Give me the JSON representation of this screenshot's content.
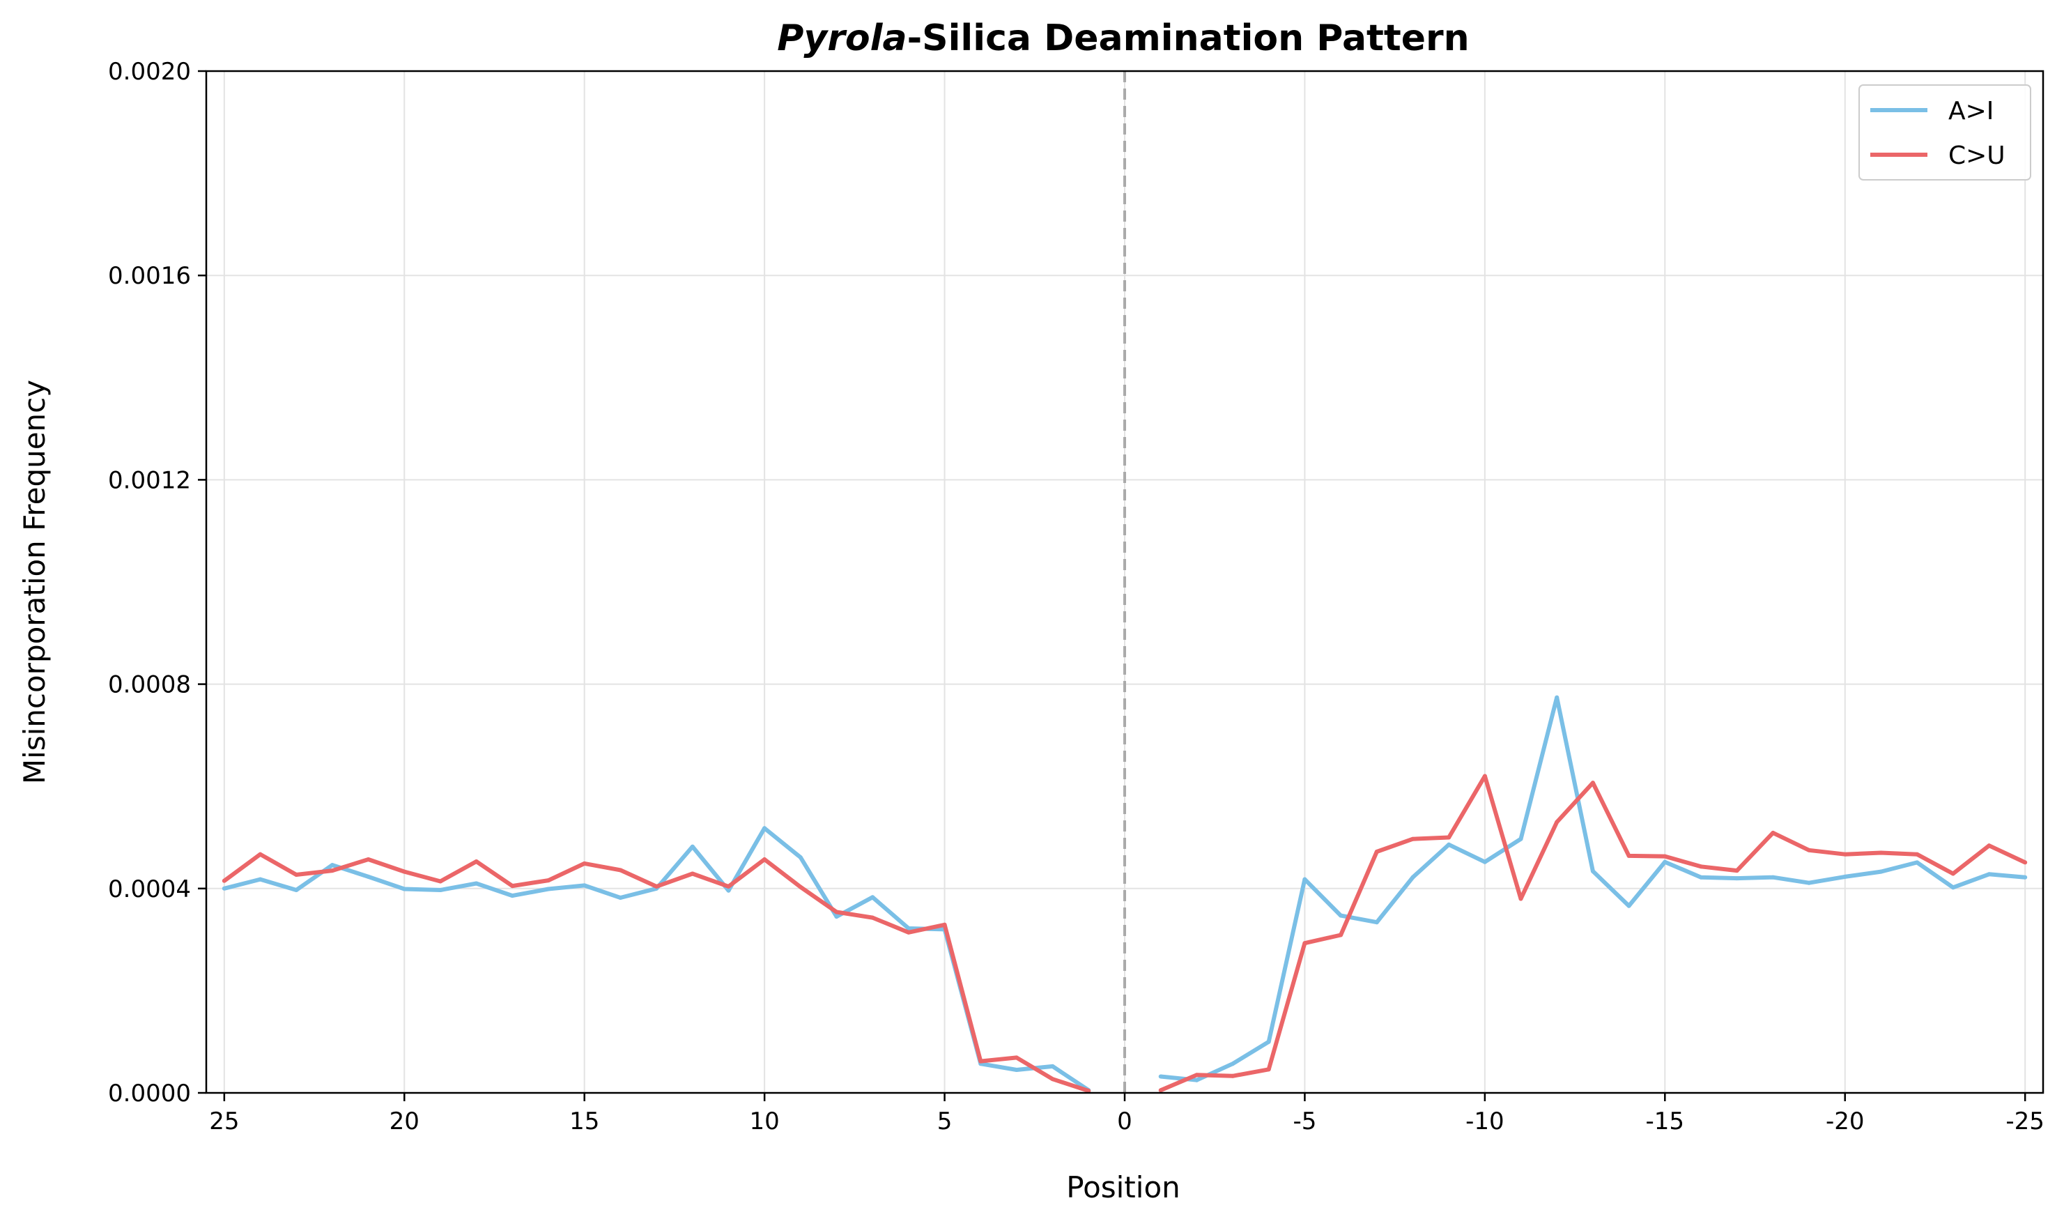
{
  "chart_data": {
    "type": "line",
    "title_italic": "Pyrola",
    "title_rest": "-Silica Deamination Pattern",
    "xlabel": "Position",
    "ylabel": "Misincorporation Frequency",
    "ylim": [
      0,
      0.002
    ],
    "y_ticks": [
      "0.0000",
      "0.0004",
      "0.0008",
      "0.0012",
      "0.0016",
      "0.0020"
    ],
    "y_tick_values": [
      0,
      0.0004,
      0.0008,
      0.0012,
      0.0016,
      0.002
    ],
    "x_ticks": [
      "25",
      "20",
      "15",
      "10",
      "5",
      "0",
      "-5",
      "-10",
      "-15",
      "-20",
      "-25"
    ],
    "x_tick_values": [
      25,
      20,
      15,
      10,
      5,
      0,
      -5,
      -10,
      -15,
      -20,
      -25
    ],
    "x_range": [
      25.5,
      -25.5
    ],
    "divider_x": 0,
    "grid": true,
    "legend_position": "top-right",
    "series": [
      {
        "name": "A>I",
        "color": "#7abfe6",
        "segments": [
          {
            "x": [
              25,
              24,
              23,
              22,
              21,
              20,
              19,
              18,
              17,
              16,
              15,
              14,
              13,
              12,
              11,
              10,
              9,
              8,
              7,
              6,
              5,
              4,
              3,
              2,
              1
            ],
            "y": [
              0.0004,
              0.000418,
              0.000397,
              0.000446,
              0.000423,
              0.000399,
              0.000397,
              0.00041,
              0.000386,
              0.000399,
              0.000406,
              0.000382,
              0.0004,
              0.000482,
              0.000396,
              0.000518,
              0.000461,
              0.000345,
              0.000383,
              0.000322,
              0.00032,
              5.7e-05,
              4.5e-05,
              5.2e-05,
              5e-06
            ]
          },
          {
            "x": [
              -1,
              -2,
              -3,
              -4,
              -5,
              -6,
              -7,
              -8,
              -9,
              -10,
              -11,
              -12,
              -13,
              -14,
              -15,
              -16,
              -17,
              -18,
              -19,
              -20,
              -21,
              -22,
              -23,
              -24,
              -25
            ],
            "y": [
              3.2e-05,
              2.5e-05,
              5.7e-05,
              0.0001,
              0.000418,
              0.000347,
              0.000334,
              0.000422,
              0.000486,
              0.000452,
              0.000497,
              0.000774,
              0.000434,
              0.000366,
              0.000452,
              0.000422,
              0.00042,
              0.000422,
              0.000411,
              0.000423,
              0.000433,
              0.000451,
              0.000402,
              0.000428,
              0.000422
            ]
          }
        ]
      },
      {
        "name": "C>U",
        "color": "#eb6668",
        "segments": [
          {
            "x": [
              25,
              24,
              23,
              22,
              21,
              20,
              19,
              18,
              17,
              16,
              15,
              14,
              13,
              12,
              11,
              10,
              9,
              8,
              7,
              6,
              5,
              4,
              3,
              2,
              1
            ],
            "y": [
              0.000415,
              0.000467,
              0.000427,
              0.000435,
              0.000457,
              0.000433,
              0.000414,
              0.000453,
              0.000405,
              0.000416,
              0.000449,
              0.000436,
              0.000404,
              0.000429,
              0.000404,
              0.000457,
              0.000403,
              0.000354,
              0.000343,
              0.000314,
              0.000329,
              6.2e-05,
              6.9e-05,
              2.7e-05,
              4e-06
            ]
          },
          {
            "x": [
              -1,
              -2,
              -3,
              -4,
              -5,
              -6,
              -7,
              -8,
              -9,
              -10,
              -11,
              -12,
              -13,
              -14,
              -15,
              -16,
              -17,
              -18,
              -19,
              -20,
              -21,
              -22,
              -23,
              -24,
              -25
            ],
            "y": [
              5e-06,
              3.5e-05,
              3.3e-05,
              4.6e-05,
              0.000293,
              0.000309,
              0.000472,
              0.000497,
              0.0005,
              0.00062,
              0.00038,
              0.00053,
              0.000607,
              0.000464,
              0.000463,
              0.000443,
              0.000435,
              0.000509,
              0.000475,
              0.000467,
              0.00047,
              0.000467,
              0.000429,
              0.000484,
              0.000451
            ]
          }
        ]
      }
    ]
  }
}
